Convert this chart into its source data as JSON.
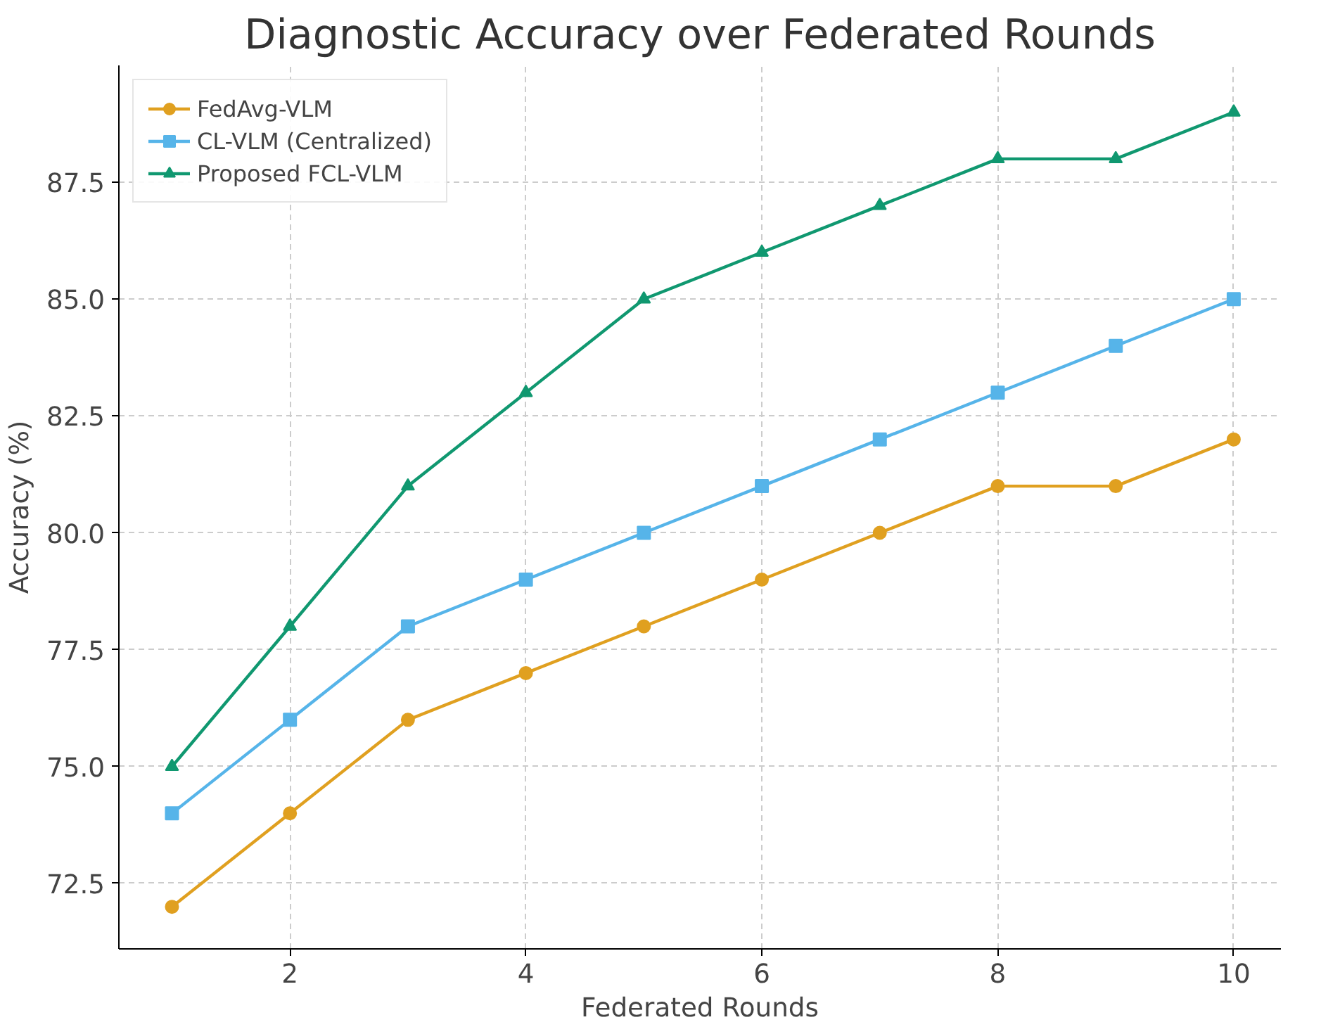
{
  "chart_data": {
    "type": "line",
    "title": "Diagnostic Accuracy over Federated Rounds",
    "xlabel": "Federated Rounds",
    "ylabel": "Accuracy (%)",
    "x": [
      1,
      2,
      3,
      4,
      5,
      6,
      7,
      8,
      9,
      10
    ],
    "series": [
      {
        "name": "FedAvg-VLM",
        "color": "#e0a020",
        "marker": "circle",
        "values": [
          72,
          74,
          76,
          77,
          78,
          79,
          80,
          81,
          81,
          82
        ]
      },
      {
        "name": "CL-VLM (Centralized)",
        "color": "#56b4e9",
        "marker": "square",
        "values": [
          74,
          76,
          78,
          79,
          80,
          81,
          82,
          83,
          84,
          85
        ]
      },
      {
        "name": "Proposed FCL-VLM",
        "color": "#109870",
        "marker": "triangle",
        "values": [
          75,
          78,
          81,
          83,
          85,
          86,
          87,
          88,
          88,
          89
        ]
      }
    ],
    "xlim": [
      0.55,
      10.4
    ],
    "ylim": [
      71.1,
      90.0
    ],
    "xticks": [
      2,
      4,
      6,
      8,
      10
    ],
    "yticks": [
      72.5,
      {
        "value": 75,
        "label": "75.0"
      },
      77.5,
      {
        "value": 80,
        "label": "80.0"
      },
      82.5,
      {
        "value": 85,
        "label": "85.0"
      },
      87.5
    ],
    "grid": true,
    "legend": "top left",
    "line_style": "solid"
  }
}
